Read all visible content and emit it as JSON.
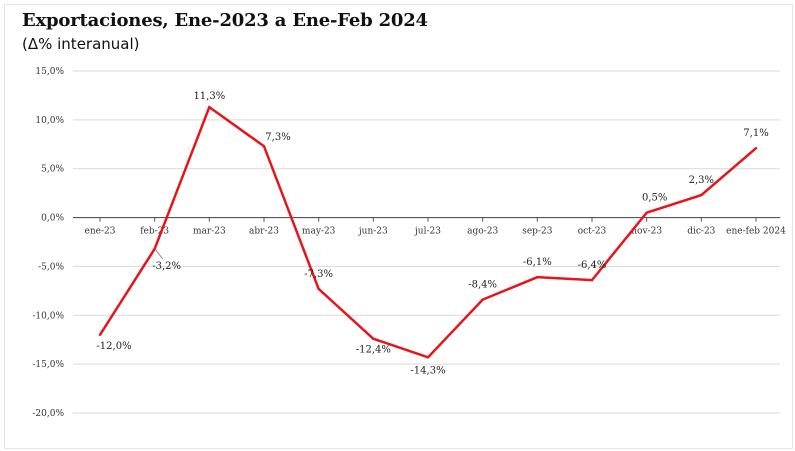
{
  "chart_data": {
    "type": "line",
    "title": "Exportaciones, Ene-2023 a Ene-Feb 2024",
    "subtitle": "(Δ% interanual)",
    "categories": [
      "ene-23",
      "feb-23",
      "mar-23",
      "abr-23",
      "may-23",
      "jun-23",
      "jul-23",
      "ago-23",
      "sep-23",
      "oct-23",
      "nov-23",
      "dic-23",
      "ene-feb 2024"
    ],
    "values": [
      -12.0,
      -3.2,
      11.3,
      7.3,
      -7.3,
      -12.4,
      -14.3,
      -8.4,
      -6.1,
      -6.4,
      0.5,
      2.3,
      7.1
    ],
    "data_labels": [
      "-12,0%",
      "-3,2%",
      "11,3%",
      "7,3%",
      "-7,3%",
      "-12,4%",
      "-14,3%",
      "-8,4%",
      "-6,1%",
      "-6,4%",
      "0,5%",
      "2,3%",
      "7,1%"
    ],
    "y_ticks": [
      15,
      10,
      5,
      0,
      -5,
      -10,
      -15,
      -20
    ],
    "y_tick_labels": [
      "15,0%",
      "10,0%",
      "5,0%",
      "0,0%",
      "-5,0%",
      "-10,0%",
      "-15,0%",
      "-20,0%"
    ],
    "ylim": [
      -20,
      15
    ],
    "grid": true,
    "line_color": "#e8141b",
    "grid_color": "#d9d9d9",
    "axis_color": "#555555"
  }
}
